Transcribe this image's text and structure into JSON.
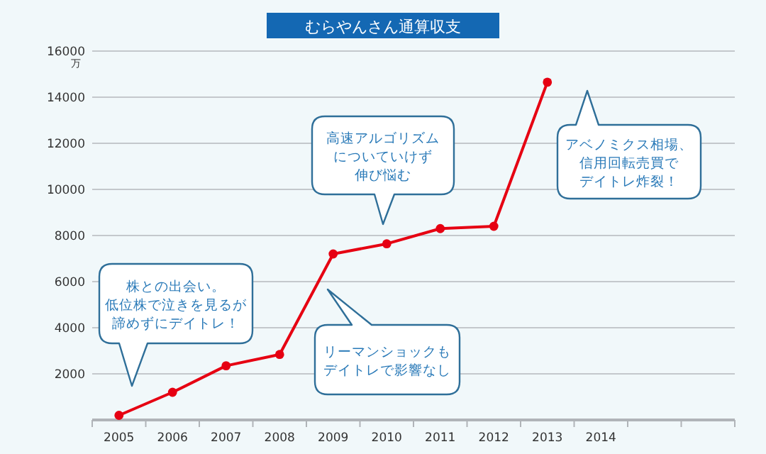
{
  "chart_data": {
    "type": "line",
    "title": "むらやんさん通算収支",
    "ylabel": "万",
    "categories": [
      "2005",
      "2006",
      "2007",
      "2008",
      "2009",
      "2010",
      "2011",
      "2012",
      "2013",
      "2014",
      null,
      null
    ],
    "values": [
      200,
      1200,
      2350,
      2840,
      7200,
      7640,
      8300,
      8400,
      14650,
      null,
      null,
      null
    ],
    "color": "#e60012",
    "marker": "circle",
    "grid": "y",
    "ylim": [
      0,
      16000
    ],
    "yticks": [
      2000,
      4000,
      6000,
      8000,
      10000,
      12000,
      14000,
      16000
    ],
    "annotations": [
      "株との出会い。低位株で泣きを見るが諦めずにデイトレ！",
      "リーマンショックもデイトレで影響なし",
      "高速アルゴリズムについていけず伸び悩む",
      "アベノミクス相場、信用回転売買でデイトレ炸裂！"
    ]
  }
}
